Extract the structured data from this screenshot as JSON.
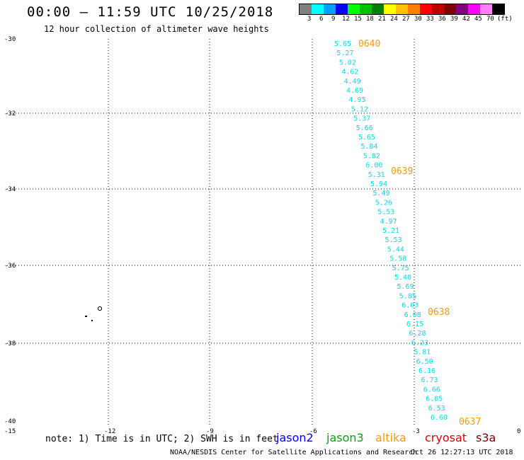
{
  "header": {
    "title": "00:00 – 11:59 UTC 10/25/2018",
    "subtitle": "12 hour collection of altimeter wave heights"
  },
  "color_scale": {
    "colors": [
      "#808080",
      "#00ffff",
      "#00a0ff",
      "#0000ff",
      "#00ff00",
      "#00c000",
      "#008000",
      "#ffff00",
      "#ffc000",
      "#ff8000",
      "#ff0000",
      "#c00000",
      "#800000",
      "#800080",
      "#ff00ff",
      "#ff80ff",
      "#000000"
    ],
    "labels": [
      "3",
      "6",
      "9",
      "12",
      "15",
      "18",
      "21",
      "24",
      "27",
      "30",
      "33",
      "36",
      "39",
      "42",
      "45",
      "70",
      "(ft)"
    ]
  },
  "axes": {
    "lat_labels": [
      "-30",
      "-32",
      "-34",
      "-36",
      "-38",
      "-40"
    ],
    "lon_labels": [
      "-15",
      "-12",
      "-9",
      "-6",
      "-3",
      "0"
    ]
  },
  "track": {
    "color": "#00e0f0",
    "values": [
      "5.65",
      "5.27",
      "5.02",
      "4.62",
      "4.49",
      "4.69",
      "4.95",
      "5.12",
      "5.37",
      "5.66",
      "5.65",
      "5.84",
      "5.82",
      "6.00",
      "5.31",
      "5.94",
      "5.49",
      "5.26",
      "5.53",
      "4.97",
      "5.21",
      "5.53",
      "5.44",
      "5.58",
      "5.75",
      "5.40",
      "5.69",
      "5.85",
      "6.03",
      "6.08",
      "6.15",
      "6.28",
      "6.23",
      "5.81",
      "6.50",
      "6.16",
      "6.73",
      "6.66",
      "6.85",
      "6.53",
      "6.60"
    ],
    "time_labels": [
      "0640",
      "0639",
      "0638",
      "0637"
    ],
    "time_color": "#ff9900"
  },
  "footer": {
    "note": "note: 1) Time is in UTC; 2) SWH is in feet",
    "credit": "NOAA/NESDIS Center for Satellite Applications and Research",
    "timestamp": "Oct 26 12:27:13 UTC 2018"
  },
  "satellites": [
    {
      "name": "jason2",
      "color": "#0000ff"
    },
    {
      "name": "jason3",
      "color": "#00aa00"
    },
    {
      "name": "altika",
      "color": "#ff9900"
    },
    {
      "name": "cryosat",
      "color": "#dd0000"
    },
    {
      "name": "s3a",
      "color": "#800000"
    }
  ]
}
